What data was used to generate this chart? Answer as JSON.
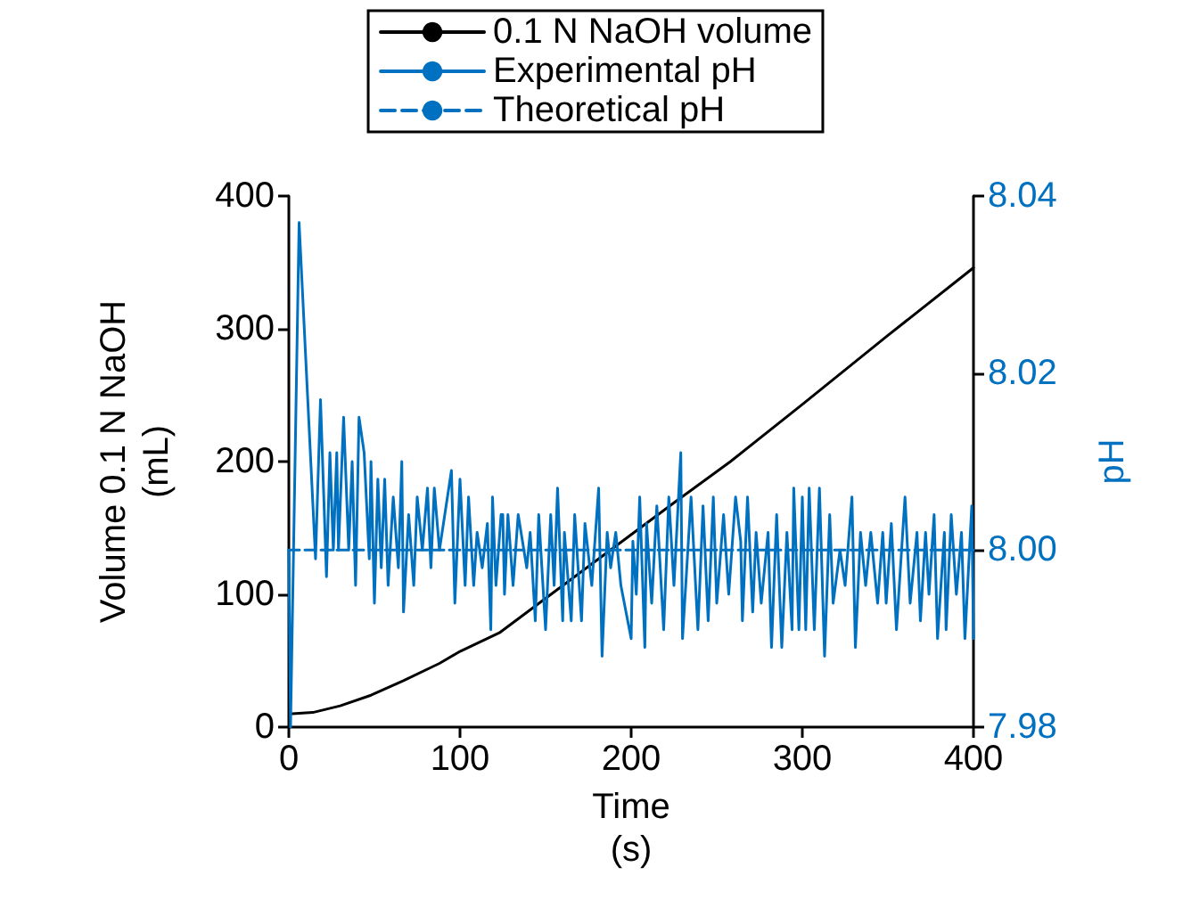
{
  "chart_data": {
    "type": "line",
    "xlabel": "Time\n(s)",
    "ylabel": "Volume 0.1 N NaOH\n(mL)",
    "y2label": "pH",
    "xlim": [
      0,
      400
    ],
    "xticks": [
      0,
      100,
      200,
      300,
      400
    ],
    "ylim": [
      0,
      400
    ],
    "yticks": [
      0,
      100,
      200,
      300,
      400
    ],
    "y2lim": [
      7.98,
      8.04
    ],
    "y2ticks": [
      7.98,
      {
        "value": 8.0,
        "label": "8.00"
      },
      8.02,
      8.04
    ],
    "grid": false,
    "legend": "top",
    "marker": "none",
    "series": [
      {
        "name": "0.1 N NaOH volume",
        "color": "#000000",
        "line_style": "solid",
        "x": [
          2,
          14,
          30,
          48,
          67,
          88,
          100,
          123,
          150,
          175,
          200,
          225,
          258,
          300,
          350,
          400
        ],
        "values": [
          10,
          11,
          16,
          24,
          35,
          48,
          57,
          71,
          97,
          121,
          145,
          169,
          200,
          243,
          295,
          346
        ]
      },
      {
        "name": "Experimental pH",
        "color": "#0070c0",
        "line_style": "solid",
        "axis": "y2",
        "x": [
          0,
          1,
          6,
          15.6,
          18.5,
          22,
          24,
          26,
          28,
          29,
          32,
          35,
          37,
          39,
          41,
          44,
          47,
          48,
          50,
          52,
          54,
          56,
          58,
          61,
          64,
          66,
          67,
          70,
          73,
          75,
          78,
          81,
          83,
          85,
          88,
          95,
          97,
          100,
          103,
          105,
          108,
          110,
          113,
          116,
          118,
          119,
          121,
          124,
          125,
          126,
          128,
          131,
          134,
          139,
          141,
          144,
          146,
          150,
          153,
          155,
          157,
          160,
          161,
          165,
          167,
          171,
          173,
          177,
          181,
          183,
          186,
          188,
          191,
          194,
          200,
          201,
          203,
          205,
          208,
          209,
          212,
          215,
          219,
          222,
          225,
          229,
          230,
          235,
          239,
          242,
          245,
          248,
          250,
          254,
          257,
          261,
          264,
          265,
          268,
          271,
          273,
          276,
          280,
          282,
          285,
          288,
          291,
          294,
          295,
          298,
          300,
          302,
          304,
          307,
          310,
          313,
          316,
          318,
          322,
          325,
          329,
          331,
          334,
          337,
          340,
          344,
          347,
          349,
          352,
          355,
          360,
          363,
          367,
          369,
          372,
          374,
          377,
          379,
          383,
          384,
          387,
          390,
          393,
          395,
          399,
          400
        ],
        "values": [
          8.0,
          7.98,
          8.037,
          7.999,
          8.017,
          7.997,
          8.011,
          8.0,
          8.011,
          8.0,
          8.015,
          8.0,
          8.01,
          7.996,
          8.015,
          8.011,
          7.999,
          8.01,
          7.994,
          8.008,
          7.998,
          8.008,
          7.996,
          8.006,
          7.998,
          8.01,
          7.993,
          8.004,
          7.996,
          8.006,
          8.0,
          8.007,
          7.998,
          8.007,
          8.0,
          8.009,
          7.994,
          8.008,
          7.996,
          8.006,
          7.996,
          8.002,
          7.998,
          8.003,
          7.991,
          8.006,
          7.996,
          8.004,
          8.004,
          7.995,
          8.004,
          7.996,
          8.004,
          7.998,
          8.002,
          7.992,
          8.004,
          7.991,
          8.004,
          7.996,
          8.007,
          7.992,
          8.002,
          7.992,
          8.004,
          7.992,
          8.003,
          7.996,
          8.007,
          7.988,
          8.002,
          7.998,
          8.002,
          7.996,
          7.99,
          8.001,
          7.995,
          8.006,
          7.989,
          8.003,
          7.994,
          8.005,
          7.991,
          8.006,
          7.996,
          8.011,
          7.99,
          8.006,
          7.991,
          8.005,
          7.992,
          8.006,
          7.994,
          8.004,
          7.995,
          8.006,
          8.001,
          7.992,
          8.006,
          7.993,
          8.002,
          7.994,
          8.002,
          7.989,
          8.004,
          7.989,
          8.002,
          7.991,
          8.007,
          7.991,
          8.006,
          7.991,
          8.007,
          7.991,
          8.007,
          7.988,
          8.004,
          7.994,
          8.0,
          7.996,
          8.006,
          7.989,
          8.002,
          7.996,
          8.002,
          7.994,
          8.002,
          7.994,
          8.003,
          7.991,
          8.006,
          7.994,
          8.002,
          7.992,
          8.002,
          7.995,
          8.004,
          7.99,
          8.002,
          7.991,
          8.004,
          7.995,
          8.002,
          7.99,
          8.005,
          7.99
        ]
      },
      {
        "name": "Theoretical pH",
        "color": "#0070c0",
        "line_style": "dashed",
        "axis": "y2",
        "x": [
          0,
          400
        ],
        "values": [
          8.0,
          8.0
        ]
      }
    ]
  }
}
